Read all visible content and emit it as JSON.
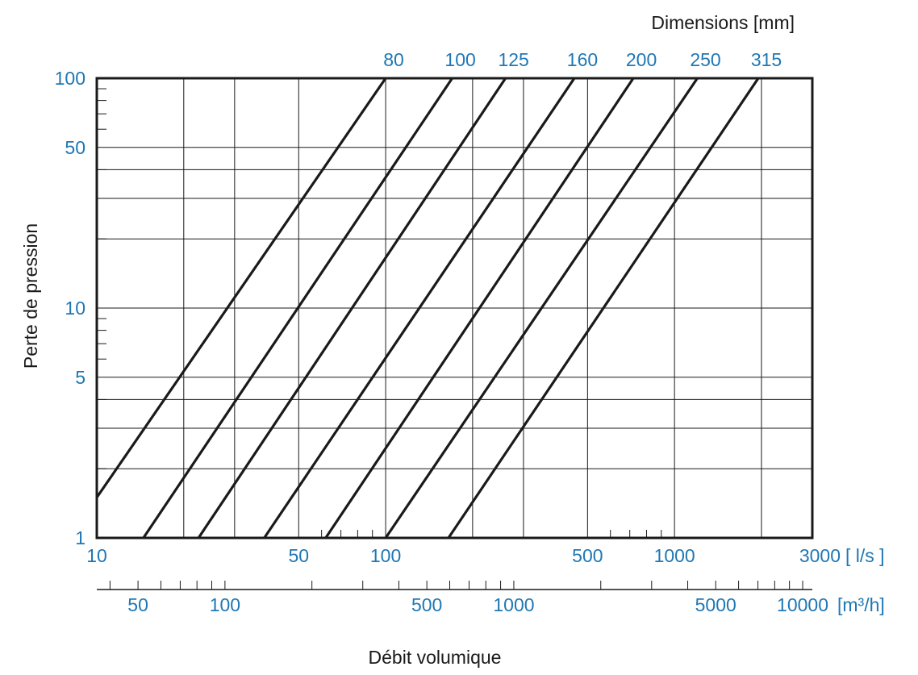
{
  "chart_data": {
    "type": "line",
    "x_scale": "log",
    "y_scale": "log",
    "xlim": [
      10,
      3000
    ],
    "ylim": [
      1,
      100
    ],
    "x_unit_label": "[ l/s ]",
    "x_ticks": [
      10,
      50,
      100,
      500,
      1000,
      3000
    ],
    "y_ticks": [
      1,
      5,
      10,
      50,
      100
    ],
    "secondary_x_unit_label": "[m³/h]",
    "secondary_x_ticks": [
      50,
      100,
      500,
      1000,
      5000,
      10000
    ],
    "ylabel": "Perte de pression",
    "xlabel": "Débit volumique",
    "series_axis_title": "Dimensions  [mm]",
    "grid": true,
    "colors": {
      "tick_labels": "#1f77b4",
      "lines": "#1a1a1a"
    },
    "series": [
      {
        "name": "80",
        "x": [
          10,
          100
        ],
        "y": [
          1.5,
          100
        ]
      },
      {
        "name": "100",
        "x": [
          14.5,
          170
        ],
        "y": [
          1,
          100
        ]
      },
      {
        "name": "125",
        "x": [
          22.5,
          260
        ],
        "y": [
          1,
          100
        ]
      },
      {
        "name": "160",
        "x": [
          38,
          450
        ],
        "y": [
          1,
          100
        ]
      },
      {
        "name": "200",
        "x": [
          62,
          720
        ],
        "y": [
          1,
          100
        ]
      },
      {
        "name": "250",
        "x": [
          100,
          1200
        ],
        "y": [
          1,
          100
        ]
      },
      {
        "name": "315",
        "x": [
          165,
          1950
        ],
        "y": [
          1,
          100
        ]
      }
    ]
  }
}
